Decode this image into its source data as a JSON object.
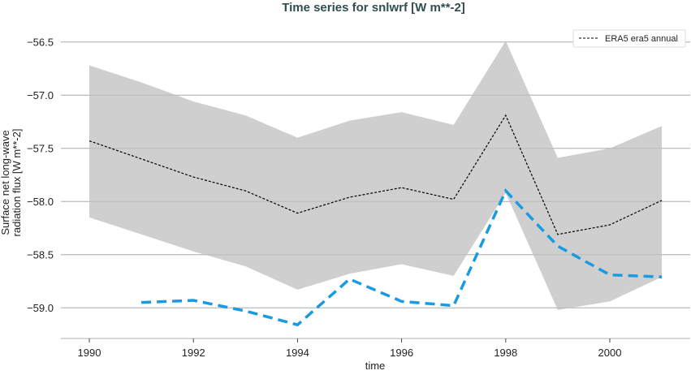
{
  "chart_data": {
    "type": "line",
    "title": "Time series for snlwrf [W m**-2]",
    "xlabel": "time",
    "ylabel_lines": [
      "Surface net long-wave",
      "radiation flux [W m**-2]"
    ],
    "xlim": [
      1989.5,
      2002.5
    ],
    "ylim": [
      -56.49,
      -59.3
    ],
    "x_ticks": [
      1990,
      1992,
      1994,
      1996,
      1998,
      2000
    ],
    "x_tick_labels": [
      "1990",
      "1992",
      "1994",
      "1996",
      "1998",
      "2000"
    ],
    "y_ticks": [
      -56.5,
      -57.0,
      -57.5,
      -58.0,
      -58.5,
      -59.0
    ],
    "y_tick_labels": [
      "−56.5",
      "−57.0",
      "−57.5",
      "−58.0",
      "−58.5",
      "−59.0"
    ],
    "grid": "horizontal",
    "legend_position": "top-right",
    "band": {
      "color": "#cccccc",
      "x": [
        1990,
        1991,
        1992,
        1993,
        1994,
        1995,
        1996,
        1997,
        1998,
        1999,
        2000,
        2001
      ],
      "upper": [
        -56.72,
        -56.88,
        -57.06,
        -57.19,
        -57.4,
        -57.24,
        -57.16,
        -57.28,
        -56.49,
        -57.59,
        -57.5,
        -57.29
      ],
      "lower": [
        -58.15,
        -58.31,
        -58.47,
        -58.61,
        -58.83,
        -58.68,
        -58.59,
        -58.7,
        -57.92,
        -59.02,
        -58.94,
        -58.71
      ]
    },
    "series": [
      {
        "name": "ERA5 era5 annual",
        "color": "#000000",
        "style": "dashed-thin",
        "x": [
          1990,
          1991,
          1992,
          1993,
          1994,
          1995,
          1996,
          1997,
          1998,
          1999,
          2000,
          2001
        ],
        "y": [
          -57.43,
          -57.6,
          -57.77,
          -57.9,
          -58.11,
          -57.96,
          -57.87,
          -57.98,
          -57.19,
          -58.31,
          -58.22,
          -57.99
        ]
      },
      {
        "color": "#1a9ae0",
        "style": "dashed-thick",
        "x": [
          1991,
          1992,
          1993,
          1994,
          1995,
          1996,
          1997,
          1998,
          1999,
          2000,
          2001
        ],
        "y": [
          -58.95,
          -58.93,
          -59.03,
          -59.16,
          -58.73,
          -58.94,
          -58.98,
          -57.9,
          -58.42,
          -58.69,
          -58.71
        ]
      }
    ]
  }
}
